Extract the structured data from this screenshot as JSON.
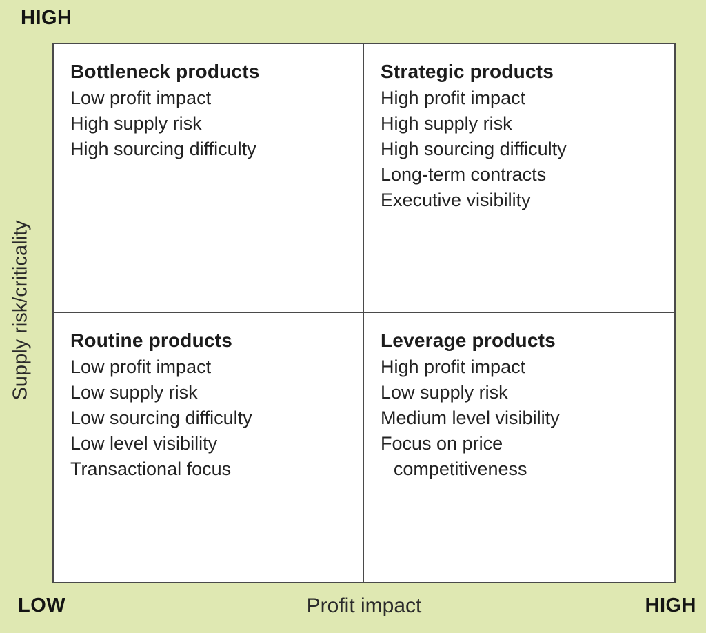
{
  "colors": {
    "background": "#dfe8b2",
    "panel": "#ffffff",
    "border": "#4a4a4a",
    "text": "#1c1c1c"
  },
  "axes": {
    "y_title": "Supply risk/criticality",
    "x_title": "Profit impact",
    "y_high": "HIGH",
    "y_low": "LOW",
    "x_high": "HIGH"
  },
  "quadrants": [
    {
      "title": "Bottleneck products",
      "items": [
        "Low profit impact",
        "High supply risk",
        "High sourcing difficulty"
      ]
    },
    {
      "title": "Strategic products",
      "items": [
        "High profit impact",
        "High supply risk",
        "High sourcing difficulty",
        "Long-term contracts",
        "Executive visibility"
      ]
    },
    {
      "title": "Routine products",
      "items": [
        "Low profit impact",
        "Low supply risk",
        "Low sourcing difficulty",
        "Low level visibility",
        "Transactional focus"
      ]
    },
    {
      "title": "Leverage products",
      "items": [
        "High profit impact",
        "Low supply risk",
        "Medium level visibility",
        "Focus on price competitiveness"
      ]
    }
  ]
}
